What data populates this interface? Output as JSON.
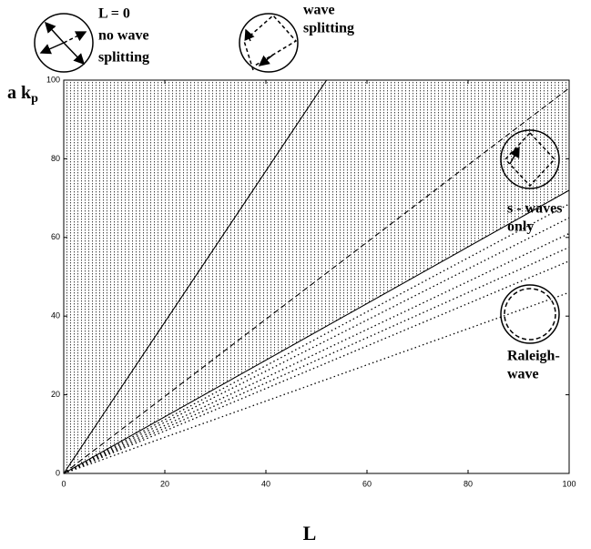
{
  "chart_data": {
    "type": "line",
    "xlabel": "L",
    "ylabel": "a k",
    "ylabel_sub": "p",
    "xlim": [
      0,
      100
    ],
    "ylim": [
      0,
      100
    ],
    "xticks": [
      0,
      20,
      40,
      60,
      80,
      100
    ],
    "yticks": [
      0,
      20,
      40,
      60,
      80,
      100
    ],
    "lines": [
      {
        "style": "solid",
        "x": [
          0,
          52
        ],
        "y": [
          0,
          100
        ]
      },
      {
        "style": "dashed",
        "x": [
          0,
          100
        ],
        "y": [
          0,
          98
        ]
      },
      {
        "style": "solid",
        "x": [
          0,
          100
        ],
        "y": [
          0,
          72
        ]
      },
      {
        "style": "dotted",
        "x": [
          0,
          100
        ],
        "y": [
          0,
          68.5
        ]
      },
      {
        "style": "dotted",
        "x": [
          0,
          100
        ],
        "y": [
          0,
          65
        ]
      },
      {
        "style": "dotted",
        "x": [
          0,
          100
        ],
        "y": [
          0,
          61
        ]
      },
      {
        "style": "dotted",
        "x": [
          0,
          100
        ],
        "y": [
          0,
          57.5
        ]
      },
      {
        "style": "dotted",
        "x": [
          0,
          100
        ],
        "y": [
          0,
          54
        ]
      },
      {
        "style": "dotted",
        "x": [
          0,
          100
        ],
        "y": [
          0,
          46
        ]
      }
    ],
    "insets": [
      {
        "lines": [
          "L = 0",
          "no wave",
          "splitting"
        ]
      },
      {
        "lines": [
          "wave",
          "splitting"
        ]
      },
      {
        "lines": [
          "s - waves",
          "only"
        ]
      },
      {
        "lines": [
          "Raleigh-",
          "wave"
        ]
      }
    ]
  }
}
